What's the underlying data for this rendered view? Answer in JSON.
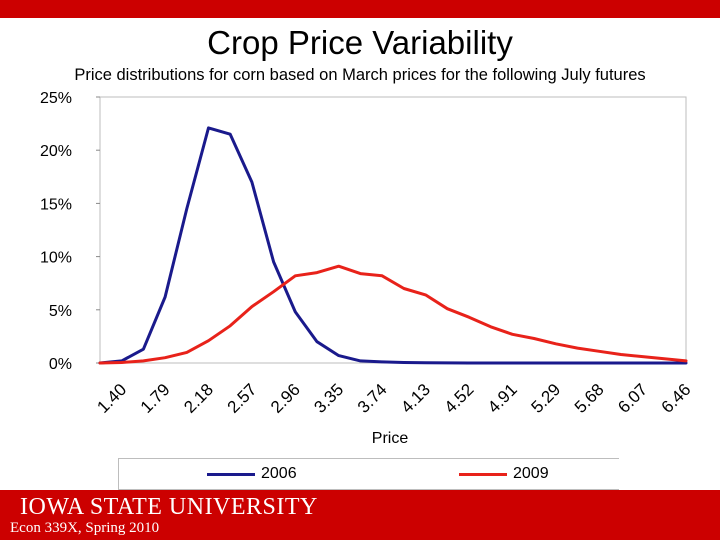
{
  "slide": {
    "title": "Crop Price Variability",
    "subtitle": "Price distributions for corn based on March prices for the following July futures"
  },
  "footer": {
    "university": "IOWA STATE UNIVERSITY",
    "course": "Econ 339X, Spring 2010"
  },
  "colors": {
    "brand": "#cc0000",
    "series_2006": "#1a1a8c",
    "series_2009": "#e8221a"
  },
  "chart_data": {
    "type": "line",
    "title": "",
    "xlabel": "Price",
    "ylabel": "",
    "ylim": [
      0,
      25
    ],
    "yticks": [
      "0%",
      "5%",
      "10%",
      "15%",
      "20%",
      "25%"
    ],
    "x_tick_labels": [
      "1.40",
      "1.79",
      "2.18",
      "2.57",
      "2.96",
      "3.35",
      "3.74",
      "4.13",
      "4.52",
      "4.91",
      "5.29",
      "5.68",
      "6.07",
      "6.46"
    ],
    "x": [
      1.4,
      1.59,
      1.79,
      1.99,
      2.18,
      2.37,
      2.57,
      2.76,
      2.96,
      3.15,
      3.35,
      3.55,
      3.74,
      3.94,
      4.13,
      4.33,
      4.52,
      4.71,
      4.91,
      5.1,
      5.29,
      5.49,
      5.68,
      5.88,
      6.07,
      6.27,
      6.46,
      6.66
    ],
    "series": [
      {
        "name": "2006",
        "values": [
          0.0,
          0.2,
          1.3,
          6.2,
          14.5,
          22.1,
          21.5,
          17.0,
          9.5,
          4.8,
          2.0,
          0.7,
          0.2,
          0.1,
          0.05,
          0.02,
          0.01,
          0.0,
          0.0,
          0.0,
          0.0,
          0.0,
          0.0,
          0.0,
          0.0,
          0.0,
          0.0,
          0.0
        ]
      },
      {
        "name": "2009",
        "values": [
          0.0,
          0.05,
          0.2,
          0.5,
          1.0,
          2.1,
          3.5,
          5.3,
          6.7,
          8.2,
          8.5,
          9.1,
          8.4,
          8.2,
          7.0,
          6.4,
          5.1,
          4.3,
          3.4,
          2.7,
          2.3,
          1.8,
          1.4,
          1.1,
          0.8,
          0.6,
          0.4,
          0.2
        ]
      }
    ],
    "legend": [
      "2006",
      "2009"
    ],
    "legend_position": "bottom"
  }
}
